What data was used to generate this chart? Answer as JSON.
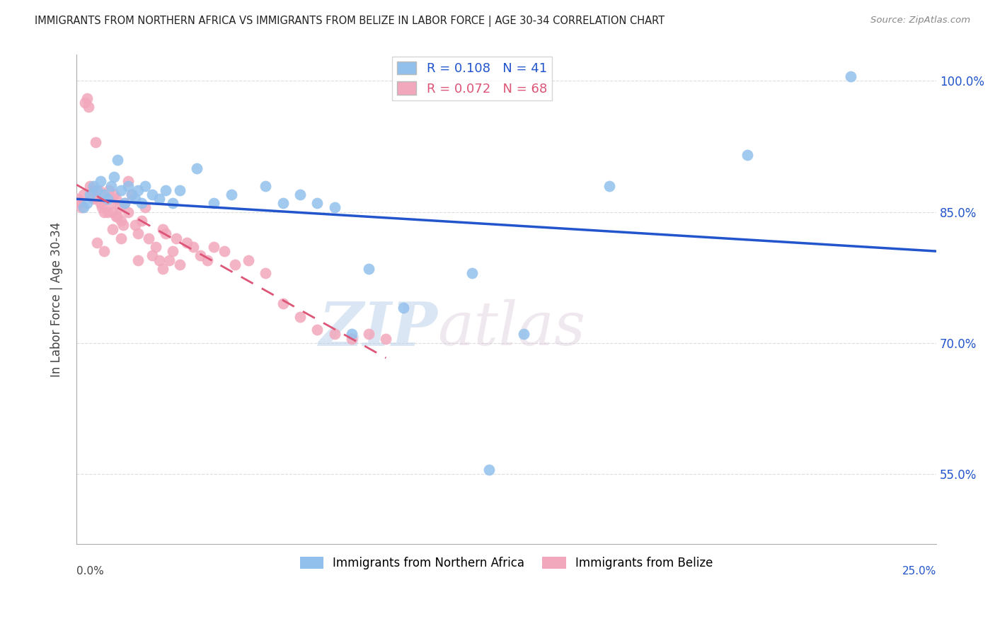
{
  "title": "IMMIGRANTS FROM NORTHERN AFRICA VS IMMIGRANTS FROM BELIZE IN LABOR FORCE | AGE 30-34 CORRELATION CHART",
  "source": "Source: ZipAtlas.com",
  "ylabel": "In Labor Force | Age 30-34",
  "y_ticks": [
    55.0,
    70.0,
    85.0,
    100.0
  ],
  "x_range": [
    0.0,
    25.0
  ],
  "y_range": [
    47.0,
    103.0
  ],
  "blue_R": 0.108,
  "blue_N": 41,
  "pink_R": 0.072,
  "pink_N": 68,
  "blue_color": "#92C0EC",
  "pink_color": "#F2A8BC",
  "blue_line_color": "#2255CC",
  "pink_line_color": "#DD5577",
  "watermark_zip": "ZIP",
  "watermark_atlas": "atlas",
  "legend_label_blue": "Immigrants from Northern Africa",
  "legend_label_pink": "Immigrants from Belize",
  "blue_scatter_x": [
    0.2,
    0.3,
    0.4,
    0.5,
    0.6,
    0.7,
    0.8,
    0.9,
    1.0,
    1.1,
    1.2,
    1.3,
    1.4,
    1.5,
    1.6,
    1.7,
    1.8,
    1.9,
    2.0,
    2.2,
    2.4,
    2.6,
    2.8,
    3.0,
    3.5,
    4.0,
    4.5,
    5.5,
    6.0,
    6.5,
    7.0,
    7.5,
    8.0,
    8.5,
    9.5,
    11.5,
    12.0,
    13.0,
    15.5,
    19.5,
    22.5
  ],
  "blue_scatter_y": [
    85.5,
    86.0,
    87.0,
    88.0,
    87.5,
    88.5,
    87.0,
    86.5,
    88.0,
    89.0,
    91.0,
    87.5,
    86.0,
    88.0,
    87.0,
    86.5,
    87.5,
    86.0,
    88.0,
    87.0,
    86.5,
    87.5,
    86.0,
    87.5,
    90.0,
    86.0,
    87.0,
    88.0,
    86.0,
    87.0,
    86.0,
    85.5,
    71.0,
    78.5,
    74.0,
    78.0,
    55.5,
    71.0,
    88.0,
    91.5,
    100.5
  ],
  "pink_scatter_x": [
    0.05,
    0.1,
    0.15,
    0.2,
    0.25,
    0.3,
    0.35,
    0.4,
    0.45,
    0.5,
    0.55,
    0.6,
    0.65,
    0.7,
    0.75,
    0.8,
    0.85,
    0.9,
    0.95,
    1.0,
    1.05,
    1.1,
    1.15,
    1.2,
    1.25,
    1.3,
    1.35,
    1.4,
    1.5,
    1.6,
    1.7,
    1.8,
    1.9,
    2.0,
    2.1,
    2.2,
    2.3,
    2.4,
    2.5,
    2.6,
    2.7,
    2.8,
    2.9,
    3.0,
    3.2,
    3.4,
    3.6,
    3.8,
    4.0,
    4.3,
    4.6,
    5.0,
    5.5,
    6.0,
    6.5,
    7.0,
    7.5,
    8.0,
    8.5,
    9.0,
    1.05,
    1.15,
    1.3,
    1.5,
    0.8,
    0.6,
    1.8,
    2.5
  ],
  "pink_scatter_y": [
    86.5,
    86.0,
    85.5,
    87.0,
    97.5,
    98.0,
    97.0,
    88.0,
    87.5,
    86.5,
    93.0,
    86.5,
    87.5,
    86.0,
    85.5,
    85.0,
    86.5,
    85.0,
    87.5,
    86.0,
    85.0,
    87.0,
    86.5,
    84.5,
    85.5,
    84.0,
    83.5,
    86.0,
    88.5,
    87.0,
    83.5,
    82.5,
    84.0,
    85.5,
    82.0,
    80.0,
    81.0,
    79.5,
    83.0,
    82.5,
    79.5,
    80.5,
    82.0,
    79.0,
    81.5,
    81.0,
    80.0,
    79.5,
    81.0,
    80.5,
    79.0,
    79.5,
    78.0,
    74.5,
    73.0,
    71.5,
    71.0,
    70.5,
    71.0,
    70.5,
    83.0,
    84.5,
    82.0,
    85.0,
    80.5,
    81.5,
    79.5,
    78.5
  ]
}
